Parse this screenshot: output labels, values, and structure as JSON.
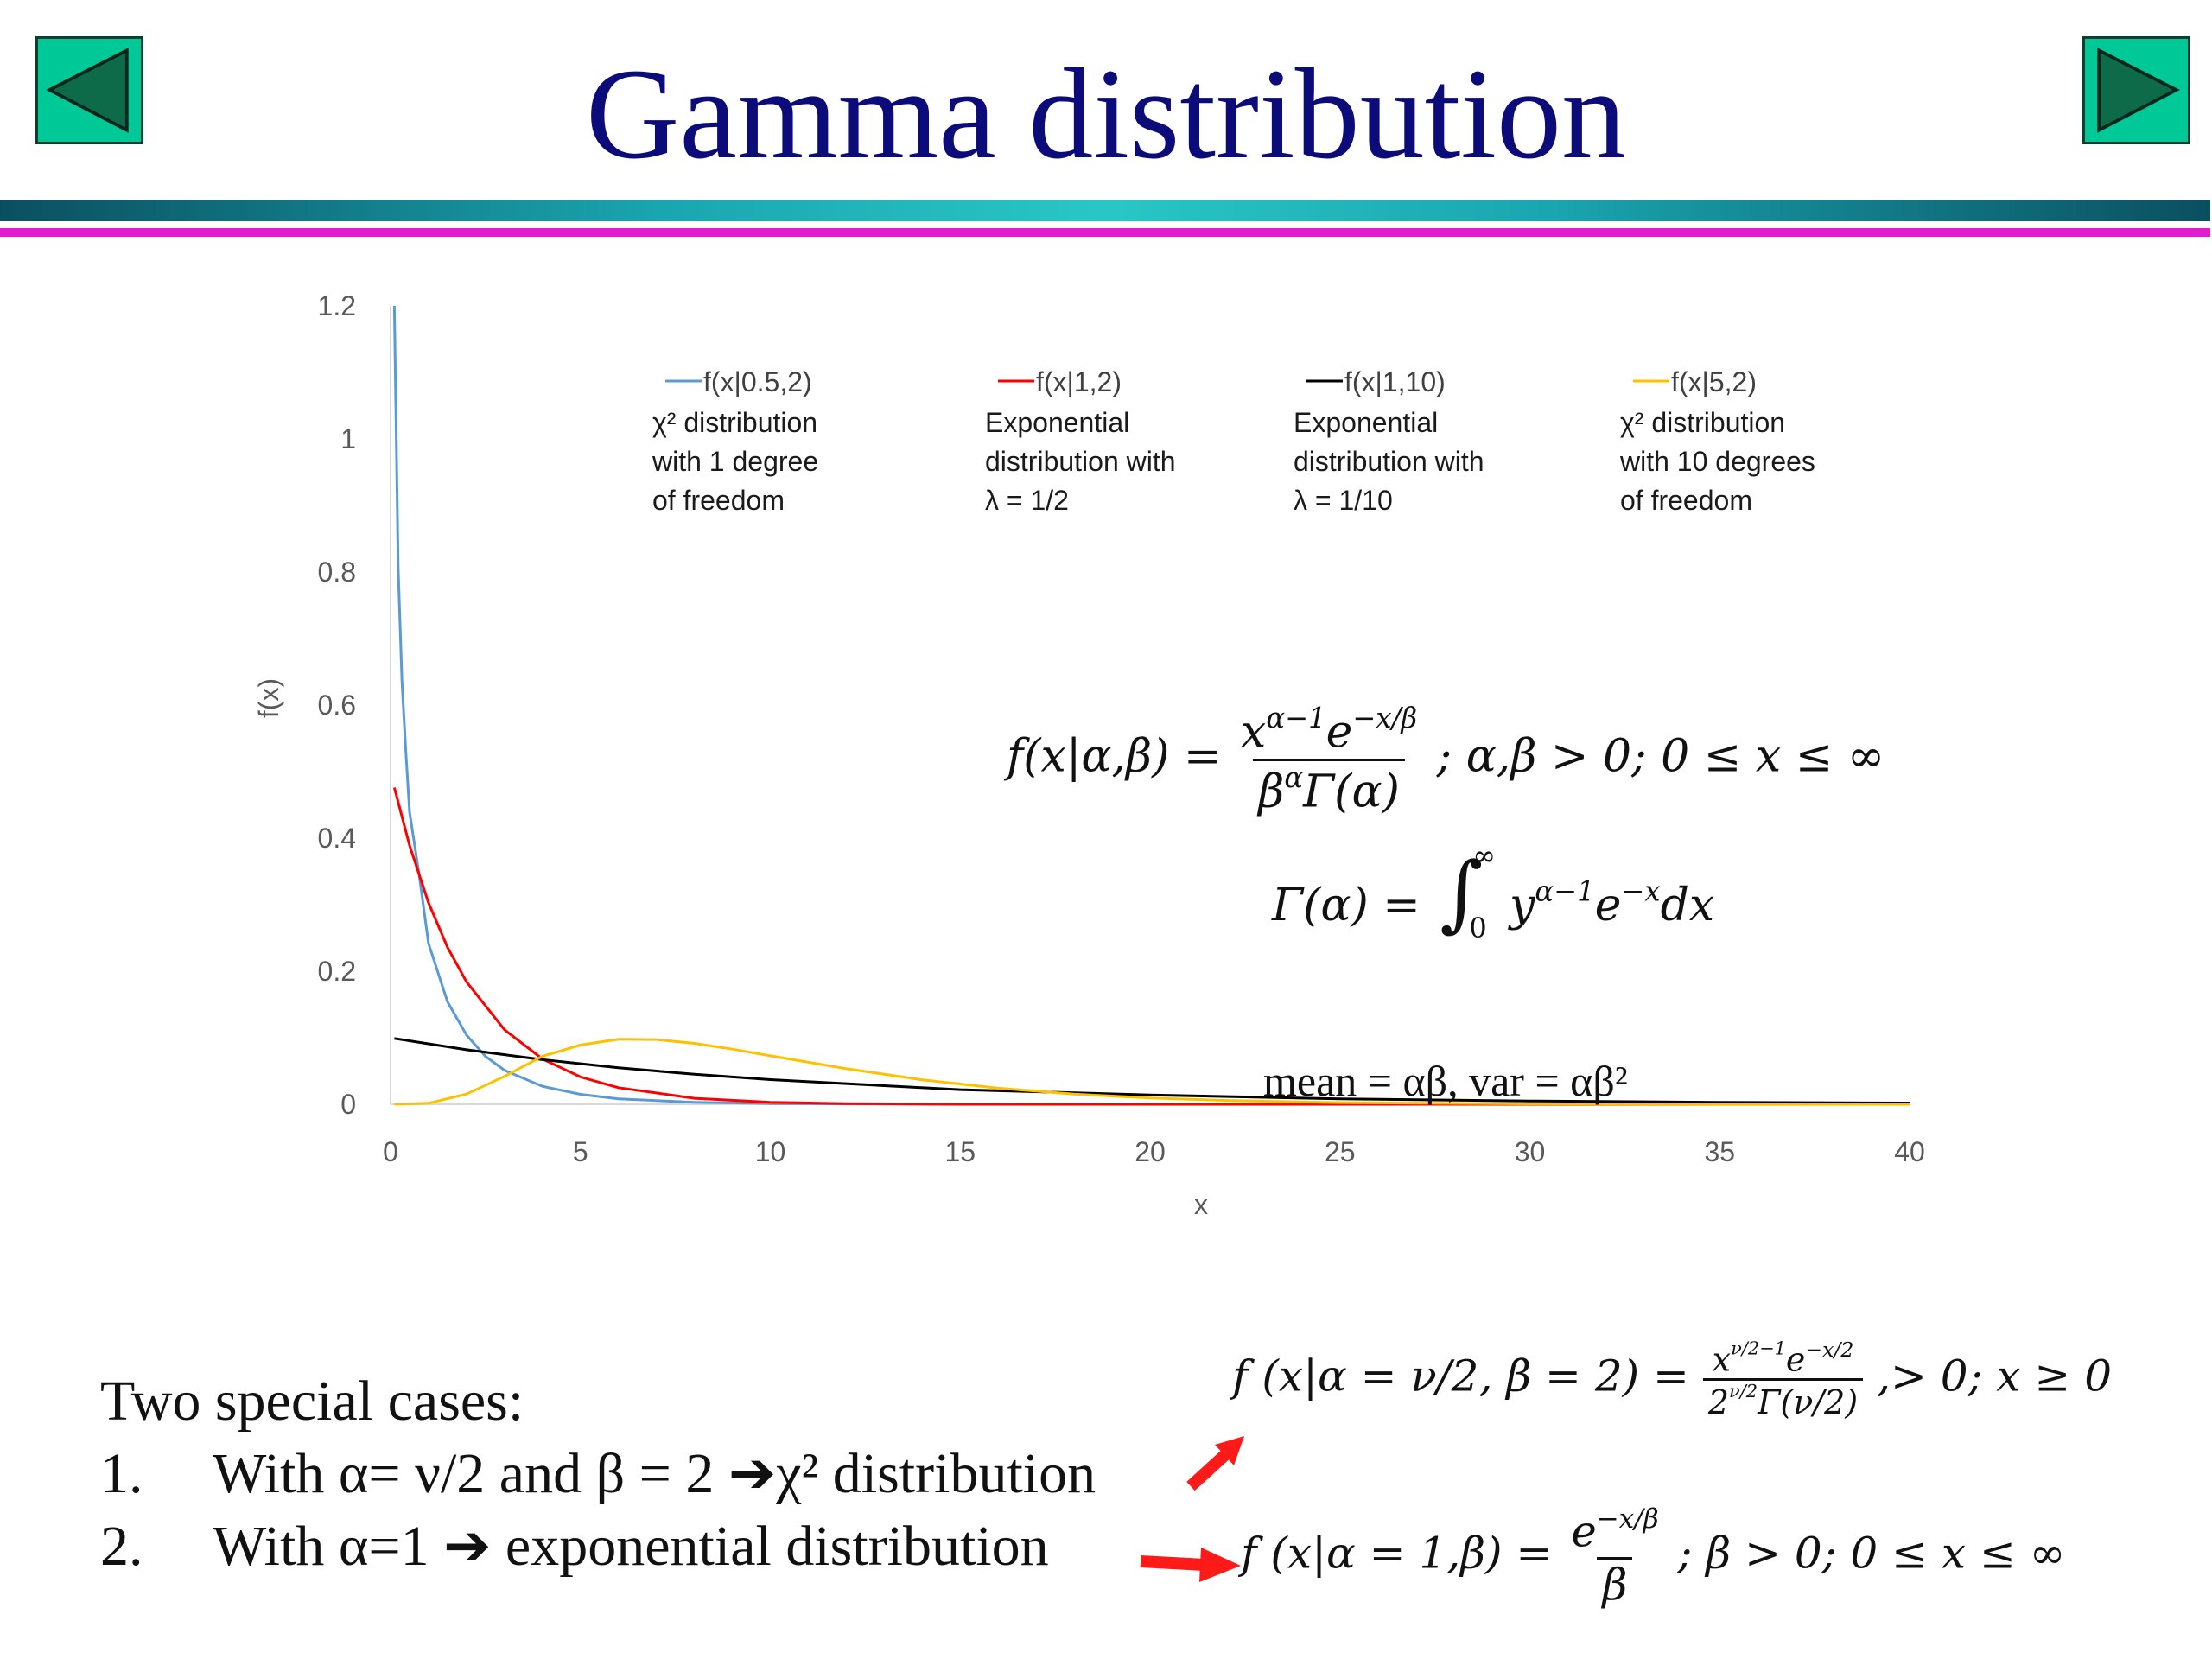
{
  "title": "Gamma distribution",
  "nav": {
    "prev_icon": "left-triangle-icon",
    "next_icon": "right-triangle-icon"
  },
  "colors": {
    "accent_green": "#00c896",
    "title_navy": "#0b0b7a",
    "bar_teal": "#1aa6b0",
    "bar_magenta": "#e21ccf",
    "arrow_red": "#ff1a1a"
  },
  "chart_data": {
    "type": "line",
    "xlabel": "x",
    "ylabel": "f(x)",
    "xlim": [
      0,
      40
    ],
    "ylim": [
      0,
      1.2
    ],
    "x_ticks": [
      "0",
      "5",
      "10",
      "15",
      "20",
      "25",
      "30",
      "35",
      "40"
    ],
    "y_ticks": [
      "0",
      "0.2",
      "0.4",
      "0.6",
      "0.8",
      "1",
      "1.2"
    ],
    "grid": false,
    "legend_position": "top",
    "series": [
      {
        "name": "f(x|0.5,2)",
        "color": "#5b9bd5",
        "description": "χ² distribution\nwith 1 degree\nof freedom",
        "x": [
          0.1,
          0.2,
          0.3,
          0.4,
          0.5,
          0.75,
          1,
          1.5,
          2,
          2.5,
          3,
          4,
          5,
          6,
          8,
          10,
          15,
          20,
          30,
          40
        ],
        "y": [
          1.2,
          0.807,
          0.636,
          0.532,
          0.439,
          0.346,
          0.242,
          0.154,
          0.104,
          0.072,
          0.051,
          0.027,
          0.015,
          0.008,
          0.003,
          0.001,
          0.0,
          0.0,
          0.0,
          0.0
        ]
      },
      {
        "name": "f(x|1,2)",
        "color": "#ff0000",
        "description": "Exponential\ndistribution with\nλ = 1/2",
        "x": [
          0.1,
          0.5,
          1,
          1.5,
          2,
          3,
          4,
          5,
          6,
          8,
          10,
          12,
          15,
          20,
          25,
          30,
          40
        ],
        "y": [
          0.476,
          0.389,
          0.303,
          0.236,
          0.184,
          0.112,
          0.068,
          0.041,
          0.025,
          0.009,
          0.003,
          0.001,
          0.0,
          0.0,
          0.0,
          0.0,
          0.0
        ]
      },
      {
        "name": "f(x|1,10)",
        "color": "#000000",
        "description": "Exponential\ndistribution with\nλ = 1/10",
        "x": [
          0.1,
          2,
          4,
          6,
          8,
          10,
          15,
          20,
          25,
          30,
          35,
          40
        ],
        "y": [
          0.099,
          0.082,
          0.067,
          0.055,
          0.045,
          0.037,
          0.022,
          0.014,
          0.008,
          0.005,
          0.003,
          0.002
        ]
      },
      {
        "name": "f(x|5,2)",
        "color": "#ffc000",
        "description": "χ² distribution\nwith 10 degrees\nof freedom",
        "x": [
          0.1,
          1,
          2,
          3,
          4,
          5,
          6,
          7,
          8,
          9,
          10,
          12,
          14,
          16,
          18,
          20,
          22,
          25,
          30,
          35,
          40
        ],
        "y": [
          0.0,
          0.0016,
          0.0153,
          0.042,
          0.0722,
          0.0891,
          0.0977,
          0.0973,
          0.0916,
          0.0829,
          0.0729,
          0.0535,
          0.0368,
          0.0241,
          0.0152,
          0.0094,
          0.0057,
          0.0025,
          0.0006,
          0.0001,
          0.0
        ]
      }
    ]
  },
  "formulas": {
    "pdf_lhs": "f(x|α,β) =",
    "pdf_num": "x",
    "pdf_num_sup1": "α−1",
    "pdf_num_e": "e",
    "pdf_num_sup2": "−x/β",
    "pdf_den": "β",
    "pdf_den_sup": "α",
    "pdf_den_tail": "Γ(α)",
    "pdf_rhs": "; α,β > 0; 0 ≤ x ≤ ∞",
    "gamma_lhs": "Γ(α) =",
    "gamma_integral": "∫",
    "gamma_upper": "∞",
    "gamma_lower": "0",
    "gamma_y": "y",
    "gamma_y_sup": "α−1",
    "gamma_e": "e",
    "gamma_e_sup": "−x",
    "gamma_dx": "dx",
    "mean_var": "mean = αβ, var = αβ²",
    "chi_lhs": "f (x|α = ν/2, β = 2) =",
    "chi_num": "x",
    "chi_num_sup": "ν/2−1",
    "chi_num_e": "e",
    "chi_num_e_sup": "−x/2",
    "chi_den": "2",
    "chi_den_sup": "ν/2",
    "chi_den_tail": "Γ(ν/2)",
    "chi_rhs": ",> 0; x ≥ 0",
    "exp_lhs": "f (x|α = 1,β) =",
    "exp_num": "e",
    "exp_num_sup": "−x/β",
    "exp_den": "β",
    "exp_rhs": "; β > 0; 0 ≤ x ≤ ∞"
  },
  "special_cases": {
    "heading": "Two special cases:",
    "items": [
      {
        "number": "1.",
        "text": "With α= ν/2 and β = 2 ➔χ² distribution"
      },
      {
        "number": "2.",
        "text": "With α=1 ➔ exponential distribution"
      }
    ]
  }
}
